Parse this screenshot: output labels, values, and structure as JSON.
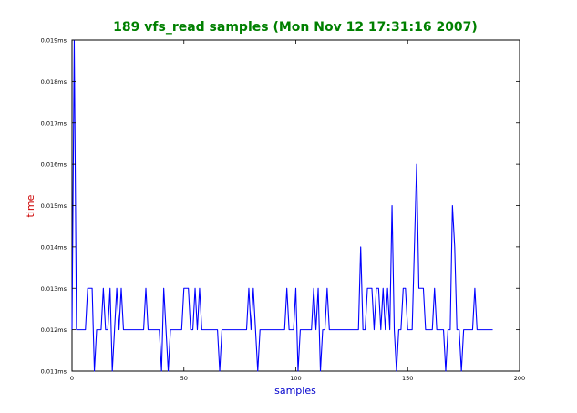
{
  "chart_data": {
    "type": "line",
    "title": "189 vfs_read samples (Mon Nov 12 17:31:16 2007)",
    "xlabel": "samples",
    "ylabel": "time",
    "xlim": [
      0,
      200
    ],
    "ylim": [
      0.011,
      0.019
    ],
    "xticks": [
      0,
      50,
      100,
      150,
      200
    ],
    "yticks": [
      0.011,
      0.012,
      0.013,
      0.014,
      0.015,
      0.016,
      0.017,
      0.018,
      0.019
    ],
    "ytick_labels": [
      "0.011ms",
      "0.012ms",
      "0.013ms",
      "0.014ms",
      "0.015ms",
      "0.016ms",
      "0.017ms",
      "0.018ms",
      "0.019ms"
    ],
    "grid": false,
    "title_color": "#008000",
    "xlabel_color": "#0000cc",
    "ylabel_color": "#cc0000",
    "line_color": "#0000ff",
    "series": [
      {
        "x": [
          0,
          1,
          2,
          3,
          4,
          5,
          6,
          7,
          8,
          9,
          10,
          11,
          12,
          13,
          14,
          15,
          16,
          17,
          18,
          19,
          20,
          21,
          22,
          23,
          24,
          25,
          26,
          27,
          28,
          29,
          30,
          31,
          32,
          33,
          34,
          35,
          36,
          37,
          38,
          39,
          40,
          41,
          42,
          43,
          44,
          45,
          46,
          47,
          48,
          49,
          50,
          51,
          52,
          53,
          54,
          55,
          56,
          57,
          58,
          59,
          60,
          61,
          62,
          63,
          64,
          65,
          66,
          67,
          68,
          69,
          70,
          71,
          72,
          73,
          74,
          75,
          76,
          77,
          78,
          79,
          80,
          81,
          82,
          83,
          84,
          85,
          86,
          87,
          88,
          89,
          90,
          91,
          92,
          93,
          94,
          95,
          96,
          97,
          98,
          99,
          100,
          101,
          102,
          103,
          104,
          105,
          106,
          107,
          108,
          109,
          110,
          111,
          112,
          113,
          114,
          115,
          116,
          117,
          118,
          119,
          120,
          121,
          122,
          123,
          124,
          125,
          126,
          127,
          128,
          129,
          130,
          131,
          132,
          133,
          134,
          135,
          136,
          137,
          138,
          139,
          140,
          141,
          142,
          143,
          144,
          145,
          146,
          147,
          148,
          149,
          150,
          151,
          152,
          153,
          154,
          155,
          156,
          157,
          158,
          159,
          160,
          161,
          162,
          163,
          164,
          165,
          166,
          167,
          168,
          169,
          170,
          171,
          172,
          173,
          174,
          175,
          176,
          177,
          178,
          179,
          180,
          181,
          182,
          183,
          184,
          185,
          186,
          187,
          188
        ],
        "y": [
          0.012,
          0.019,
          0.012,
          0.012,
          0.012,
          0.012,
          0.012,
          0.013,
          0.013,
          0.013,
          0.011,
          0.012,
          0.012,
          0.012,
          0.013,
          0.012,
          0.012,
          0.013,
          0.011,
          0.012,
          0.013,
          0.012,
          0.013,
          0.012,
          0.012,
          0.012,
          0.012,
          0.012,
          0.012,
          0.012,
          0.012,
          0.012,
          0.012,
          0.013,
          0.012,
          0.012,
          0.012,
          0.012,
          0.012,
          0.012,
          0.011,
          0.013,
          0.012,
          0.011,
          0.012,
          0.012,
          0.012,
          0.012,
          0.012,
          0.012,
          0.013,
          0.013,
          0.013,
          0.012,
          0.012,
          0.013,
          0.012,
          0.013,
          0.012,
          0.012,
          0.012,
          0.012,
          0.012,
          0.012,
          0.012,
          0.012,
          0.011,
          0.012,
          0.012,
          0.012,
          0.012,
          0.012,
          0.012,
          0.012,
          0.012,
          0.012,
          0.012,
          0.012,
          0.012,
          0.013,
          0.012,
          0.013,
          0.012,
          0.011,
          0.012,
          0.012,
          0.012,
          0.012,
          0.012,
          0.012,
          0.012,
          0.012,
          0.012,
          0.012,
          0.012,
          0.012,
          0.013,
          0.012,
          0.012,
          0.012,
          0.013,
          0.011,
          0.012,
          0.012,
          0.012,
          0.012,
          0.012,
          0.012,
          0.013,
          0.012,
          0.013,
          0.011,
          0.012,
          0.012,
          0.013,
          0.012,
          0.012,
          0.012,
          0.012,
          0.012,
          0.012,
          0.012,
          0.012,
          0.012,
          0.012,
          0.012,
          0.012,
          0.012,
          0.012,
          0.014,
          0.012,
          0.012,
          0.013,
          0.013,
          0.013,
          0.012,
          0.013,
          0.013,
          0.012,
          0.013,
          0.012,
          0.013,
          0.012,
          0.015,
          0.012,
          0.011,
          0.012,
          0.012,
          0.013,
          0.013,
          0.012,
          0.012,
          0.012,
          0.014,
          0.016,
          0.013,
          0.013,
          0.013,
          0.012,
          0.012,
          0.012,
          0.012,
          0.013,
          0.012,
          0.012,
          0.012,
          0.012,
          0.011,
          0.012,
          0.012,
          0.015,
          0.014,
          0.012,
          0.012,
          0.011,
          0.012,
          0.012,
          0.012,
          0.012,
          0.012,
          0.013,
          0.012,
          0.012,
          0.012,
          0.012,
          0.012,
          0.012,
          0.012,
          0.012
        ]
      }
    ]
  }
}
